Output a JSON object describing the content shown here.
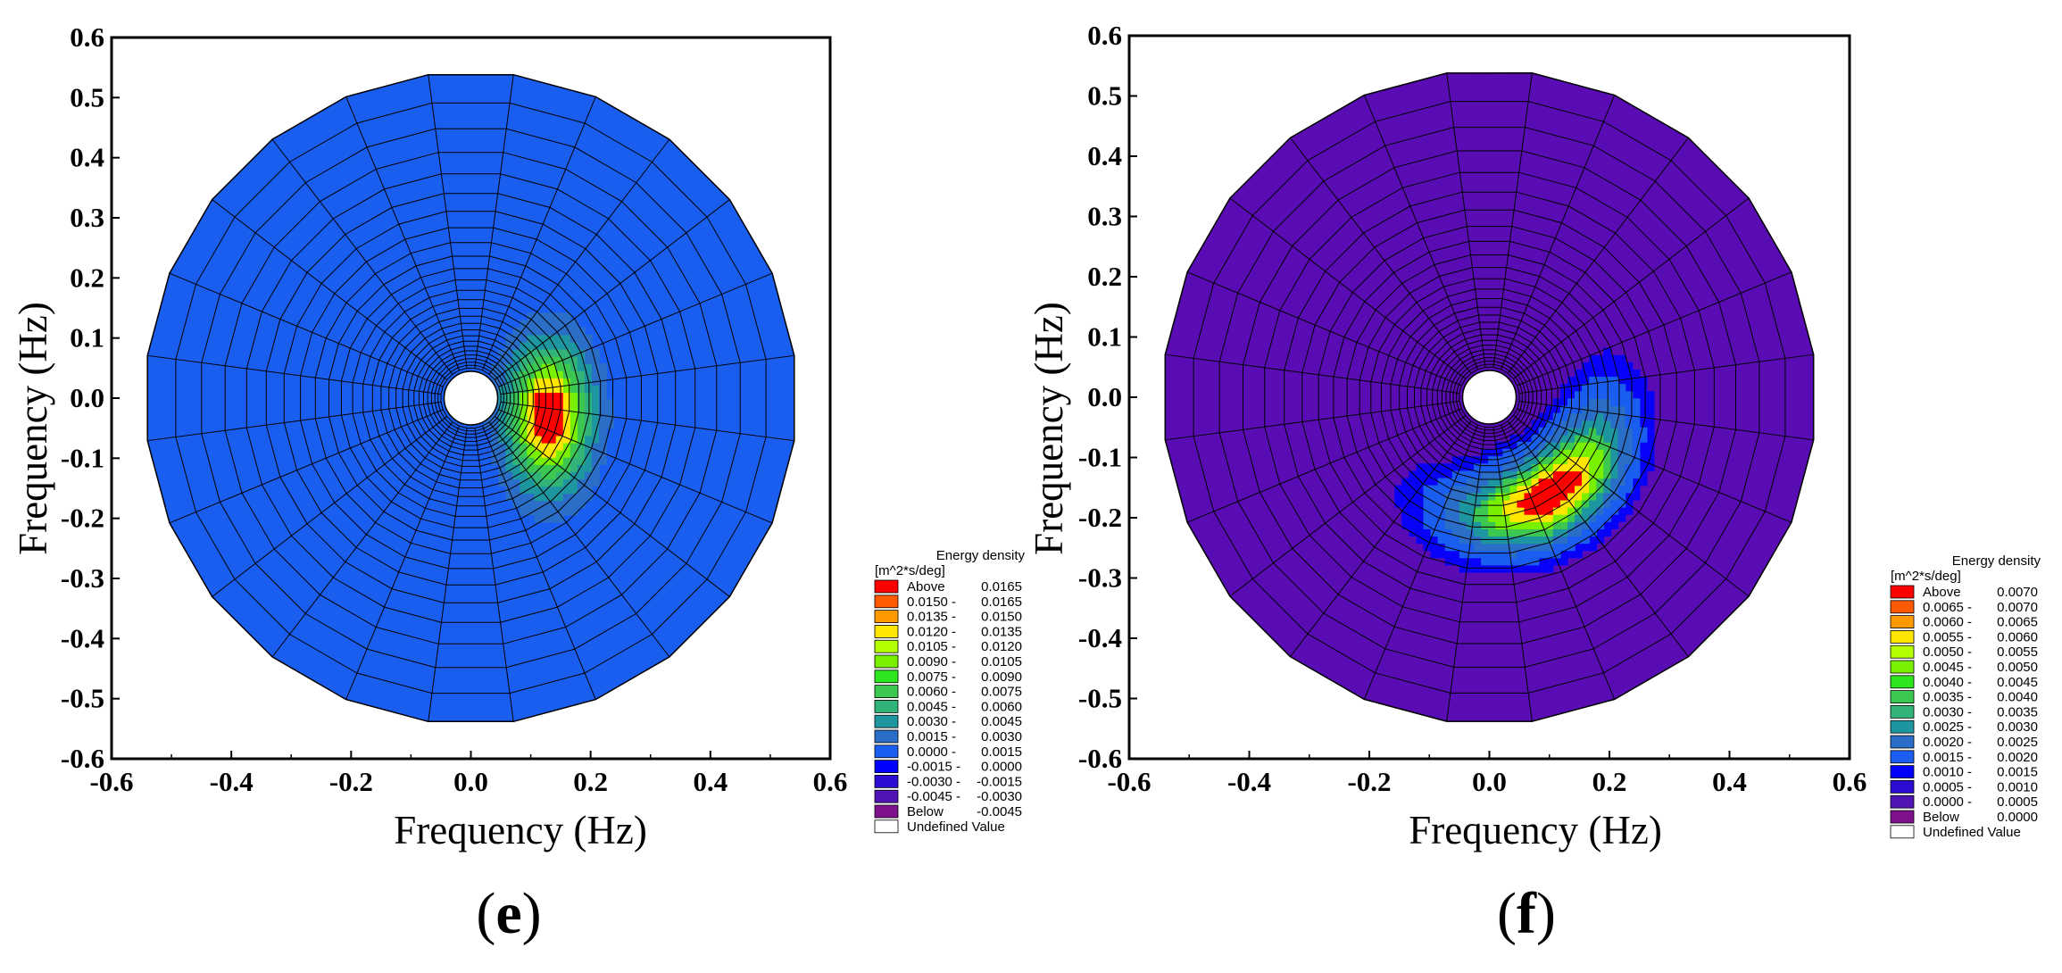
{
  "chart_data": [
    {
      "type": "polar-contour",
      "panel_label": "e",
      "title": "",
      "xlabel": "Frequency (Hz)",
      "ylabel": "Frequency (Hz)",
      "xlim": [
        -0.6,
        0.6
      ],
      "ylim": [
        -0.6,
        0.6
      ],
      "ticks": [
        "-0.6",
        "-0.5",
        "-0.4",
        "-0.3",
        "-0.2",
        "-0.1",
        "0.0",
        "0.1",
        "0.2",
        "0.3",
        "0.4",
        "0.5",
        "0.6"
      ],
      "xticks": [
        "-0.6",
        "-0.4",
        "-0.2",
        "0.0",
        "0.2",
        "0.4",
        "0.6"
      ],
      "grid": {
        "directions": 24,
        "max_frequency": 0.54,
        "min_frequency": 0.05,
        "rings": 26
      },
      "background_color": "#1a5ef0",
      "peak": {
        "x": 0.13,
        "y": -0.03,
        "description": "energy concentrated in small region east of origin"
      },
      "legend": {
        "title": "Energy density",
        "units": "[m^2*s/deg]",
        "entries": [
          {
            "label": "Above",
            "range": "0.0165",
            "color": "#ff0000"
          },
          {
            "label": "0.0150 -",
            "range": "0.0165",
            "color": "#ff5a00"
          },
          {
            "label": "0.0135 -",
            "range": "0.0150",
            "color": "#ff9900"
          },
          {
            "label": "0.0120 -",
            "range": "0.0135",
            "color": "#ffe600"
          },
          {
            "label": "0.0105 -",
            "range": "0.0120",
            "color": "#b4ff00"
          },
          {
            "label": "0.0090 -",
            "range": "0.0105",
            "color": "#78f000"
          },
          {
            "label": "0.0075 -",
            "range": "0.0090",
            "color": "#2de61e"
          },
          {
            "label": "0.0060 -",
            "range": "0.0075",
            "color": "#3cc850"
          },
          {
            "label": "0.0045 -",
            "range": "0.0060",
            "color": "#32b478"
          },
          {
            "label": "0.0030 -",
            "range": "0.0045",
            "color": "#1e96a0"
          },
          {
            "label": "0.0015 -",
            "range": "0.0030",
            "color": "#2a6ec8"
          },
          {
            "label": "0.0000 -",
            "range": "0.0015",
            "color": "#1a5ef0"
          },
          {
            "label": "-0.0015 -",
            "range": "0.0000",
            "color": "#0000ff"
          },
          {
            "label": "-0.0030 -",
            "range": "-0.0015",
            "color": "#2d0cd2"
          },
          {
            "label": "-0.0045 -",
            "range": "-0.0030",
            "color": "#5014b4"
          },
          {
            "label": "Below",
            "range": "-0.0045",
            "color": "#7d128c"
          },
          {
            "label": "Undefined Value",
            "range": "",
            "color": "#ffffff"
          }
        ]
      }
    },
    {
      "type": "polar-contour",
      "panel_label": "f",
      "title": "",
      "xlabel": "Frequency (Hz)",
      "ylabel": "Frequency (Hz)",
      "xlim": [
        -0.6,
        0.6
      ],
      "ylim": [
        -0.6,
        0.6
      ],
      "ticks": [
        "-0.6",
        "-0.5",
        "-0.4",
        "-0.3",
        "-0.2",
        "-0.1",
        "0.0",
        "0.1",
        "0.2",
        "0.3",
        "0.4",
        "0.5",
        "0.6"
      ],
      "xticks": [
        "-0.6",
        "-0.4",
        "-0.2",
        "0.0",
        "0.2",
        "0.4",
        "0.6"
      ],
      "grid": {
        "directions": 24,
        "max_frequency": 0.54,
        "min_frequency": 0.05,
        "rings": 26
      },
      "background_color": "#5a0cb4",
      "peak": {
        "x": 0.1,
        "y": -0.16,
        "description": "crescent-shaped energy band south-east of origin"
      },
      "legend": {
        "title": "Energy density",
        "units": "[m^2*s/deg]",
        "entries": [
          {
            "label": "Above",
            "range": "0.0070",
            "color": "#ff0000"
          },
          {
            "label": "0.0065 -",
            "range": "0.0070",
            "color": "#ff5a00"
          },
          {
            "label": "0.0060 -",
            "range": "0.0065",
            "color": "#ff9900"
          },
          {
            "label": "0.0055 -",
            "range": "0.0060",
            "color": "#ffe600"
          },
          {
            "label": "0.0050 -",
            "range": "0.0055",
            "color": "#b4ff00"
          },
          {
            "label": "0.0045 -",
            "range": "0.0050",
            "color": "#78f000"
          },
          {
            "label": "0.0040 -",
            "range": "0.0045",
            "color": "#2de61e"
          },
          {
            "label": "0.0035 -",
            "range": "0.0040",
            "color": "#3cc850"
          },
          {
            "label": "0.0030 -",
            "range": "0.0035",
            "color": "#32b478"
          },
          {
            "label": "0.0025 -",
            "range": "0.0030",
            "color": "#1e96a0"
          },
          {
            "label": "0.0020 -",
            "range": "0.0025",
            "color": "#2a6ec8"
          },
          {
            "label": "0.0015 -",
            "range": "0.0020",
            "color": "#1a5ef0"
          },
          {
            "label": "0.0010 -",
            "range": "0.0015",
            "color": "#0000ff"
          },
          {
            "label": "0.0005 -",
            "range": "0.0010",
            "color": "#2d0cd2"
          },
          {
            "label": "0.0000 -",
            "range": "0.0005",
            "color": "#5014b4"
          },
          {
            "label": "Below",
            "range": "0.0000",
            "color": "#7d128c"
          },
          {
            "label": "Undefined Value",
            "range": "",
            "color": "#ffffff"
          }
        ]
      }
    }
  ]
}
